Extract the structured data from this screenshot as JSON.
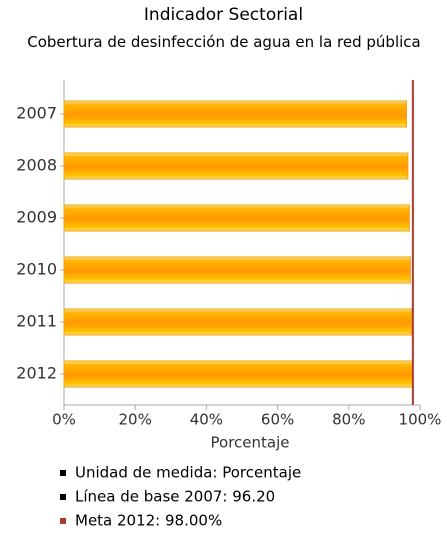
{
  "chart_data": {
    "type": "bar",
    "orientation": "horizontal",
    "title": "Indicador Sectorial",
    "subtitle": "Cobertura de desinfección de agua en la red pública",
    "categories": [
      "2007",
      "2008",
      "2009",
      "2010",
      "2011",
      "2012"
    ],
    "values": [
      96.2,
      96.6,
      97.0,
      97.3,
      97.6,
      98.0
    ],
    "color": "#ff9900",
    "xlabel": "Porcentaje",
    "xlim": [
      0,
      100
    ],
    "xticks": [
      {
        "value": 0,
        "label": "0%"
      },
      {
        "value": 20,
        "label": "20%"
      },
      {
        "value": 40,
        "label": "40%"
      },
      {
        "value": 60,
        "label": "60%"
      },
      {
        "value": 80,
        "label": "80%"
      },
      {
        "value": 100,
        "label": "100%"
      }
    ],
    "target": 98,
    "target_color": "#b03a2e",
    "notes": [
      {
        "text": "Unidad de medida: Porcentaje",
        "color": "#000000"
      },
      {
        "text": "Línea de base 2007: 96.20",
        "color": "#000000"
      },
      {
        "text": "Meta 2012: 98.00%",
        "color": "#b03a2e"
      }
    ]
  }
}
